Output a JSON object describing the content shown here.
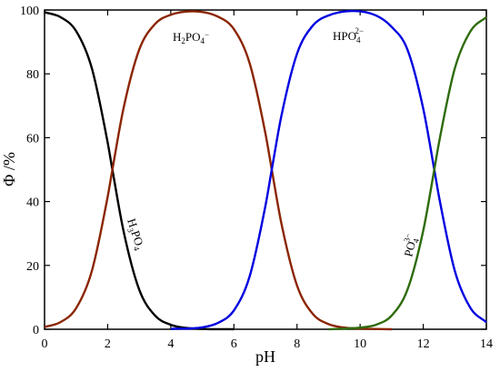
{
  "chart_data": {
    "type": "line",
    "title": "",
    "xlabel": "pH",
    "ylabel": "Φ /%",
    "xlim": [
      0,
      14
    ],
    "ylim": [
      0,
      100
    ],
    "xticks": [
      0,
      2,
      4,
      6,
      8,
      10,
      12,
      14
    ],
    "yticks": [
      0,
      20,
      40,
      60,
      80,
      100
    ],
    "grid": false,
    "pKa": [
      2.15,
      7.2,
      12.35
    ],
    "series": [
      {
        "name": "H3PO4",
        "label_parts": [
          "H",
          "3",
          "PO",
          "4",
          ""
        ],
        "color": "#000000",
        "x": [
          0,
          0.5,
          1.0,
          1.5,
          2.0,
          2.15,
          2.5,
          3.0,
          3.5,
          4.0,
          4.5,
          5.0,
          6.0
        ],
        "y": [
          99.3,
          97.8,
          93.4,
          81.7,
          58.5,
          50.0,
          30.9,
          12.4,
          4.3,
          1.4,
          0.4,
          0.1,
          0.0
        ]
      },
      {
        "name": "H2PO4−",
        "label_parts": [
          "H",
          "2",
          "PO",
          "4",
          "−"
        ],
        "color": "#8B2500",
        "x": [
          0,
          0.5,
          1.0,
          1.5,
          2.0,
          2.15,
          2.5,
          3.0,
          3.5,
          4.0,
          4.68,
          5.5,
          6.0,
          6.5,
          7.0,
          7.2,
          7.5,
          8.0,
          8.5,
          9.0,
          9.5,
          10.0,
          11.0
        ],
        "y": [
          0.7,
          2.2,
          6.6,
          18.3,
          41.5,
          50.0,
          69.1,
          87.6,
          95.6,
          98.5,
          99.6,
          97.9,
          94.0,
          83.3,
          61.3,
          50.0,
          33.4,
          13.7,
          4.8,
          1.6,
          0.5,
          0.2,
          0.0
        ]
      },
      {
        "name": "HPO42−",
        "label_parts": [
          "HPO",
          "4",
          "2−"
        ],
        "color": "#0000E0",
        "x": [
          4.0,
          5.0,
          5.5,
          6.0,
          6.5,
          7.0,
          7.2,
          7.5,
          8.0,
          8.5,
          9.0,
          9.78,
          10.5,
          11.0,
          11.5,
          12.0,
          12.35,
          12.5,
          13.0,
          13.5,
          14.0
        ],
        "y": [
          0.1,
          0.6,
          2.0,
          5.9,
          16.6,
          38.7,
          50.0,
          66.6,
          86.3,
          95.1,
          98.3,
          99.7,
          98.3,
          94.7,
          87.6,
          69.1,
          50.0,
          41.5,
          18.3,
          6.6,
          2.2
        ]
      },
      {
        "name": "PO43−",
        "label_parts": [
          "PO",
          "4",
          "3−"
        ],
        "color": "#2E6B0A",
        "x": [
          9.0,
          9.5,
          10.0,
          10.5,
          11.0,
          11.5,
          12.0,
          12.35,
          12.5,
          13.0,
          13.5,
          14.0
        ],
        "y": [
          0.0,
          0.2,
          0.5,
          1.4,
          4.3,
          12.4,
          30.9,
          50.0,
          58.5,
          81.7,
          93.4,
          97.8
        ]
      }
    ]
  }
}
